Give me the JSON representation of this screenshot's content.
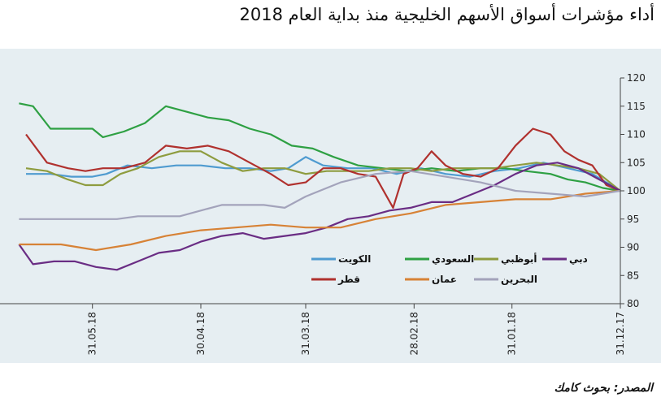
{
  "title": "أداء مؤشرات أسواق الأسهم الخليجية منذ بداية العام 2018",
  "source": "المصدر: بحوث كامك",
  "chart_data": {
    "type": "line",
    "x_direction": "right-to-left",
    "x_ticks": [
      "31.12.17",
      "31.01.18",
      "28.02.18",
      "31.03.18",
      "30.04.18",
      "31.05.18"
    ],
    "x_tick_days": [
      0,
      31,
      59,
      90,
      120,
      151
    ],
    "ylim": [
      80,
      120
    ],
    "y_ticks": [
      80,
      85,
      90,
      95,
      100,
      105,
      110,
      115,
      120
    ],
    "legend_position": "bottom-right inside",
    "series": [
      {
        "name": "الكويت",
        "color": "#4f9bd0",
        "days": [
          0,
          8,
          15,
          22,
          29,
          36,
          43,
          50,
          57,
          64,
          71,
          78,
          85,
          90,
          95,
          100,
          106,
          113,
          120,
          127,
          134,
          141,
          147,
          151,
          157,
          163,
          170
        ],
        "values": [
          100,
          103,
          104,
          105,
          104,
          103.5,
          102.5,
          103,
          104,
          103,
          104,
          104,
          104.5,
          106,
          104,
          103.5,
          104,
          104,
          104.5,
          104.5,
          104,
          104.5,
          103,
          102.5,
          102.5,
          103,
          103
        ]
      },
      {
        "name": "السعودي",
        "color": "#2ea043",
        "days": [
          0,
          5,
          10,
          15,
          20,
          27,
          33,
          40,
          47,
          54,
          61,
          68,
          75,
          82,
          88,
          94,
          100,
          106,
          112,
          118,
          124,
          130,
          136,
          142,
          148,
          151,
          157,
          163,
          168,
          172
        ],
        "values": [
          100,
          100.5,
          101.5,
          102,
          103,
          103.5,
          104,
          104,
          103.5,
          104,
          103.5,
          104,
          104.5,
          106,
          107.5,
          108,
          110,
          111,
          112.5,
          113,
          114,
          115,
          112,
          110.5,
          109.5,
          111,
          111,
          111,
          115,
          115.5
        ]
      },
      {
        "name": "أبوظبي",
        "color": "#8e9c3f",
        "days": [
          0,
          6,
          12,
          18,
          24,
          30,
          36,
          42,
          48,
          54,
          60,
          66,
          72,
          78,
          84,
          90,
          96,
          102,
          108,
          114,
          120,
          126,
          132,
          138,
          143,
          148,
          153,
          158,
          164,
          170
        ],
        "values": [
          100,
          103,
          104,
          104.5,
          105,
          104.5,
          104,
          104,
          104,
          103.5,
          104,
          104,
          103.5,
          103.5,
          103.5,
          103,
          104,
          104,
          103.5,
          105,
          107,
          107,
          106,
          104,
          103,
          101,
          101,
          102,
          103.5,
          104
        ]
      },
      {
        "name": "قطر",
        "color": "#b0312e",
        "days": [
          0,
          4,
          8,
          12,
          16,
          20,
          25,
          30,
          35,
          40,
          45,
          50,
          54,
          58,
          62,
          65,
          70,
          75,
          80,
          85,
          90,
          95,
          100,
          106,
          112,
          118,
          124,
          130,
          136,
          142,
          148,
          153,
          158,
          164,
          170
        ],
        "values": [
          100,
          101,
          104.5,
          105.5,
          107,
          110,
          111,
          108,
          104,
          102.5,
          103,
          104.5,
          107,
          104,
          103,
          97,
          102.5,
          103,
          104,
          104,
          101.5,
          101,
          103,
          105,
          107,
          108,
          107.5,
          108,
          105,
          104,
          104,
          103.5,
          104,
          105,
          110
        ]
      },
      {
        "name": "دبي",
        "color": "#6a2d84",
        "days": [
          0,
          6,
          12,
          18,
          24,
          30,
          36,
          42,
          48,
          54,
          60,
          66,
          72,
          78,
          84,
          90,
          96,
          102,
          108,
          114,
          120,
          126,
          132,
          138,
          144,
          150,
          156,
          162,
          168,
          172
        ],
        "values": [
          100,
          102,
          104,
          105,
          104.5,
          103,
          101,
          99.5,
          98,
          98,
          97,
          96.5,
          95.5,
          95,
          93.5,
          92.5,
          92,
          91.5,
          92.5,
          92,
          91,
          89.5,
          89,
          87.5,
          86,
          86.5,
          87.5,
          87.5,
          87,
          90.5
        ]
      },
      {
        "name": "عمان",
        "color": "#d78236",
        "days": [
          0,
          10,
          20,
          30,
          40,
          50,
          60,
          70,
          80,
          90,
          100,
          110,
          120,
          130,
          140,
          150,
          160,
          172
        ],
        "values": [
          100,
          99.5,
          98.5,
          98.5,
          98,
          97.5,
          96,
          95,
          93.5,
          93.5,
          94,
          93.5,
          93,
          92,
          90.5,
          89.5,
          90.5,
          90.5
        ]
      },
      {
        "name": "البحرين",
        "color": "#a3a3bb",
        "days": [
          0,
          10,
          20,
          30,
          40,
          50,
          60,
          70,
          80,
          90,
          96,
          102,
          108,
          114,
          120,
          126,
          132,
          138,
          144,
          150,
          160,
          172
        ],
        "values": [
          100,
          99,
          99.5,
          100,
          101.5,
          102.5,
          103.5,
          103,
          101.5,
          99,
          97,
          97.5,
          97.5,
          97.5,
          96.5,
          95.5,
          95.5,
          95.5,
          95,
          95,
          95,
          95
        ]
      }
    ]
  }
}
